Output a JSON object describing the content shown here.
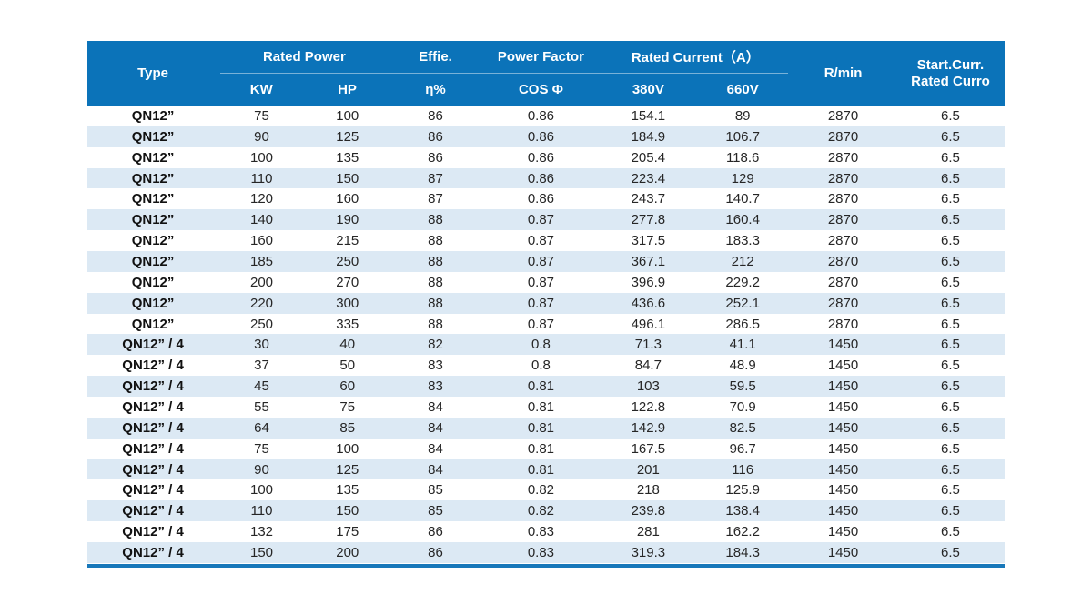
{
  "colors": {
    "header_bg": "#0b73b9",
    "header_text": "#ffffff",
    "stripe_bg": "#dce9f4",
    "row_bg": "#ffffff",
    "body_text": "#262626",
    "type_text": "#111111",
    "divider": "rgba(255,255,255,0.45)",
    "bottom_border": "#1878ba"
  },
  "table": {
    "header": {
      "type": "Type",
      "rated_power": "Rated Power",
      "kw": "KW",
      "hp": "HP",
      "effie": "Effie.",
      "eta": "η%",
      "power_factor": "Power Factor",
      "cos_phi": "COS Φ",
      "rated_current": "Rated Current（A）",
      "v380": "380V",
      "v660": "660V",
      "rpm": "R/min",
      "start_curr_line1": "Start.Curr.",
      "start_curr_line2": "Rated Curro"
    },
    "rows": [
      [
        "QN12”",
        "75",
        "100",
        "86",
        "0.86",
        "154.1",
        "89",
        "2870",
        "6.5"
      ],
      [
        "QN12”",
        "90",
        "125",
        "86",
        "0.86",
        "184.9",
        "106.7",
        "2870",
        "6.5"
      ],
      [
        "QN12”",
        "100",
        "135",
        "86",
        "0.86",
        "205.4",
        "118.6",
        "2870",
        "6.5"
      ],
      [
        "QN12”",
        "110",
        "150",
        "87",
        "0.86",
        "223.4",
        "129",
        "2870",
        "6.5"
      ],
      [
        "QN12”",
        "120",
        "160",
        "87",
        "0.86",
        "243.7",
        "140.7",
        "2870",
        "6.5"
      ],
      [
        "QN12”",
        "140",
        "190",
        "88",
        "0.87",
        "277.8",
        "160.4",
        "2870",
        "6.5"
      ],
      [
        "QN12”",
        "160",
        "215",
        "88",
        "0.87",
        "317.5",
        "183.3",
        "2870",
        "6.5"
      ],
      [
        "QN12”",
        "185",
        "250",
        "88",
        "0.87",
        "367.1",
        "212",
        "2870",
        "6.5"
      ],
      [
        "QN12”",
        "200",
        "270",
        "88",
        "0.87",
        "396.9",
        "229.2",
        "2870",
        "6.5"
      ],
      [
        "QN12”",
        "220",
        "300",
        "88",
        "0.87",
        "436.6",
        "252.1",
        "2870",
        "6.5"
      ],
      [
        "QN12”",
        "250",
        "335",
        "88",
        "0.87",
        "496.1",
        "286.5",
        "2870",
        "6.5"
      ],
      [
        "QN12” / 4",
        "30",
        "40",
        "82",
        "0.8",
        "71.3",
        "41.1",
        "1450",
        "6.5"
      ],
      [
        "QN12” / 4",
        "37",
        "50",
        "83",
        "0.8",
        "84.7",
        "48.9",
        "1450",
        "6.5"
      ],
      [
        "QN12” / 4",
        "45",
        "60",
        "83",
        "0.81",
        "103",
        "59.5",
        "1450",
        "6.5"
      ],
      [
        "QN12” / 4",
        "55",
        "75",
        "84",
        "0.81",
        "122.8",
        "70.9",
        "1450",
        "6.5"
      ],
      [
        "QN12” / 4",
        "64",
        "85",
        "84",
        "0.81",
        "142.9",
        "82.5",
        "1450",
        "6.5"
      ],
      [
        "QN12” / 4",
        "75",
        "100",
        "84",
        "0.81",
        "167.5",
        "96.7",
        "1450",
        "6.5"
      ],
      [
        "QN12” / 4",
        "90",
        "125",
        "84",
        "0.81",
        "201",
        "116",
        "1450",
        "6.5"
      ],
      [
        "QN12” / 4",
        "100",
        "135",
        "85",
        "0.82",
        "218",
        "125.9",
        "1450",
        "6.5"
      ],
      [
        "QN12” / 4",
        "110",
        "150",
        "85",
        "0.82",
        "239.8",
        "138.4",
        "1450",
        "6.5"
      ],
      [
        "QN12” / 4",
        "132",
        "175",
        "86",
        "0.83",
        "281",
        "162.2",
        "1450",
        "6.5"
      ],
      [
        "QN12” / 4",
        "150",
        "200",
        "86",
        "0.83",
        "319.3",
        "184.3",
        "1450",
        "6.5"
      ]
    ]
  }
}
